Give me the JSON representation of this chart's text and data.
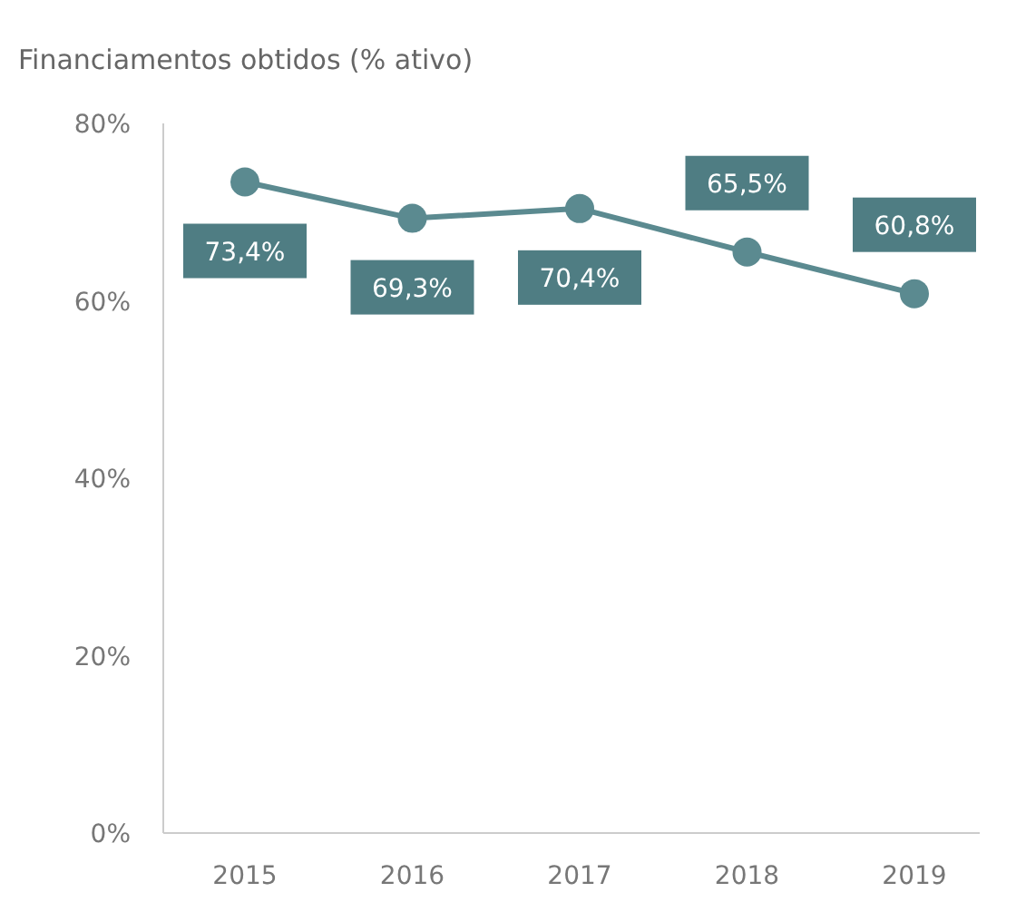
{
  "chart_data": {
    "type": "line",
    "title": "Financiamentos obtidos (% ativo)",
    "categories": [
      "2015",
      "2016",
      "2017",
      "2018",
      "2019"
    ],
    "series": [
      {
        "color": "#5b8a90",
        "values": [
          73.4,
          69.3,
          70.4,
          65.5,
          60.8
        ],
        "value_labels": [
          "73,4%",
          "69,3%",
          "70,4%",
          "65,5%",
          "60,8%"
        ]
      }
    ],
    "ylim": [
      0,
      80
    ],
    "yticks": [
      {
        "value": 0,
        "label": "0%"
      },
      {
        "value": 20,
        "label": "20%"
      },
      {
        "value": 40,
        "label": "40%"
      },
      {
        "value": 60,
        "label": "60%"
      },
      {
        "value": 80,
        "label": "80%"
      }
    ],
    "marker": "circle",
    "line_style": "solid",
    "grid": false
  }
}
